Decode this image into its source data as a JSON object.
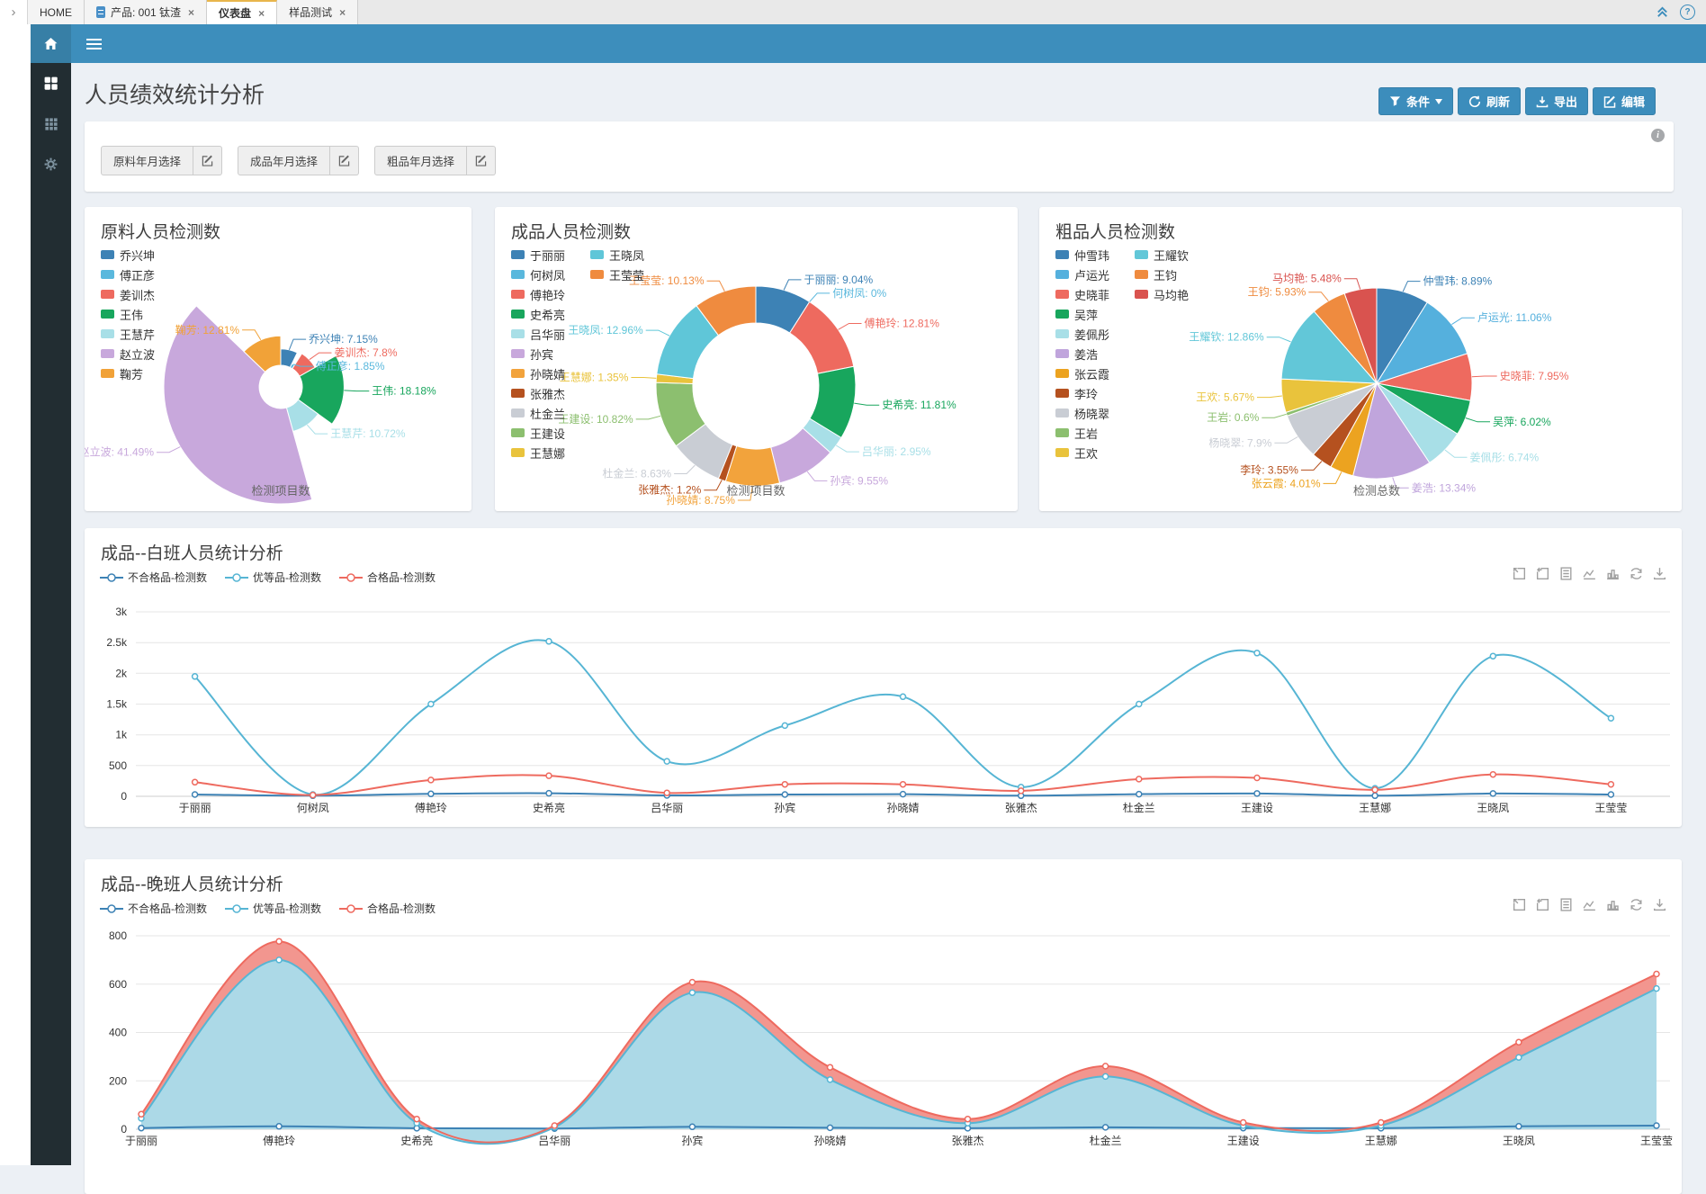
{
  "tab_bar": {
    "scroll_chevron": "›",
    "close_glyph": "×",
    "help_glyph": "?",
    "tabs": [
      {
        "label": "HOME",
        "active": false,
        "closable": false
      },
      {
        "label": "产品: 001 钛渣",
        "active": false,
        "closable": true,
        "icon": "database-icon"
      },
      {
        "label": "仪表盘",
        "active": true,
        "closable": true
      },
      {
        "label": "样品测试",
        "active": false,
        "closable": true
      }
    ]
  },
  "app_bar": {
    "colors": {
      "bar": "#3d8ebc",
      "home_button": "#377fa6"
    }
  },
  "sidebar": {
    "items": [
      {
        "icon": "grid-large-icon"
      },
      {
        "icon": "grid-small-icon"
      },
      {
        "icon": "gear-icon"
      }
    ]
  },
  "page": {
    "title": "人员绩效统计分析",
    "accent_color": "#3c8dbc",
    "info_icon": "i",
    "actions": [
      {
        "label": "条件",
        "icon": "funnel-icon",
        "caret": true
      },
      {
        "label": "刷新",
        "icon": "refresh-icon"
      },
      {
        "label": "导出",
        "icon": "download-icon"
      },
      {
        "label": "编辑",
        "icon": "edit-icon"
      }
    ]
  },
  "filter_bar": {
    "groups": [
      {
        "label": "原料年月选择",
        "icon": "edit-icon"
      },
      {
        "label": "成品年月选择",
        "icon": "edit-icon"
      },
      {
        "label": "粗品年月选择",
        "icon": "edit-icon"
      }
    ]
  },
  "toolbox_icons": [
    "zoom",
    "zoom-revert",
    "data-view",
    "line-type",
    "bar-type",
    "restore",
    "save-image"
  ],
  "chart_data": [
    {
      "type": "pie",
      "variant": "rose",
      "title": "原料人员检测数",
      "caption": "检测项目数",
      "label_format": "{name}: {value}%",
      "legend_columns": 1,
      "items": [
        {
          "name": "乔兴坤",
          "value": 7.15,
          "color": "#3d82b5"
        },
        {
          "name": "傅正彦",
          "value": 1.85,
          "color": "#5ab8dd"
        },
        {
          "name": "姜训杰",
          "value": 7.8,
          "color": "#ee6a5f"
        },
        {
          "name": "王伟",
          "value": 18.18,
          "color": "#18a65d"
        },
        {
          "name": "王慧芹",
          "value": 10.72,
          "color": "#a8dfe7"
        },
        {
          "name": "赵立波",
          "value": 41.49,
          "color": "#c8a8dc"
        },
        {
          "name": "鞠芳",
          "value": 12.81,
          "color": "#f1a238"
        }
      ],
      "legend": [
        "乔兴坤",
        "傅正彦",
        "姜训杰",
        "王伟",
        "王慧芹",
        "赵立波",
        "鞠芳"
      ]
    },
    {
      "type": "pie",
      "variant": "donut",
      "title": "成品人员检测数",
      "caption": "检测项目数",
      "label_format": "{name}: {value}%",
      "legend_columns": 2,
      "items": [
        {
          "name": "于丽丽",
          "value": 9.04,
          "color": "#3d82b5"
        },
        {
          "name": "何树凤",
          "value": 0,
          "color": "#5ab8dd"
        },
        {
          "name": "傅艳玲",
          "value": 12.81,
          "color": "#ee6a5f"
        },
        {
          "name": "史希亮",
          "value": 11.81,
          "color": "#18a65d"
        },
        {
          "name": "吕华丽",
          "value": 2.95,
          "color": "#a8dfe7"
        },
        {
          "name": "孙宾",
          "value": 9.55,
          "color": "#c8a8dc"
        },
        {
          "name": "孙晓婧",
          "value": 8.75,
          "color": "#f2a33c"
        },
        {
          "name": "张雅杰",
          "value": 1.2,
          "color": "#b5511f"
        },
        {
          "name": "杜金兰",
          "value": 8.63,
          "color": "#c9cdd4"
        },
        {
          "name": "王建设",
          "value": 10.82,
          "color": "#8cbf6f"
        },
        {
          "name": "王慧娜",
          "value": 1.35,
          "color": "#e9c33c"
        },
        {
          "name": "王晓凤",
          "value": 12.96,
          "color": "#5fc6d8"
        },
        {
          "name": "王莹莹",
          "value": 10.13,
          "color": "#ef8b3f"
        }
      ],
      "legend": [
        "于丽丽",
        "何树凤",
        "傅艳玲",
        "史希亮",
        "吕华丽",
        "孙宾",
        "孙晓婧",
        "张雅杰",
        "杜金兰",
        "王建设",
        "王慧娜",
        "王晓凤",
        "王莹莹"
      ]
    },
    {
      "type": "pie",
      "variant": "plain",
      "title": "粗品人员检测数",
      "caption": "检测总数",
      "label_format": "{name}: {value}%",
      "legend_columns": 2,
      "items": [
        {
          "name": "仲雪玮",
          "value": 8.89,
          "color": "#3d82b5"
        },
        {
          "name": "卢运光",
          "value": 11.06,
          "color": "#55b0dd"
        },
        {
          "name": "史晓菲",
          "value": 7.95,
          "color": "#ee6a5f"
        },
        {
          "name": "吴萍",
          "value": 6.02,
          "color": "#18a65d"
        },
        {
          "name": "姜佩彤",
          "value": 6.74,
          "color": "#a8dfe7"
        },
        {
          "name": "姜浩",
          "value": 13.34,
          "color": "#c0a5dc"
        },
        {
          "name": "张云霞",
          "value": 4.01,
          "color": "#eca320"
        },
        {
          "name": "李玲",
          "value": 3.55,
          "color": "#b5511f"
        },
        {
          "name": "杨晓翠",
          "value": 7.9,
          "color": "#c9cdd4"
        },
        {
          "name": "王岩",
          "value": 0.6,
          "color": "#8cbf6f"
        },
        {
          "name": "王欢",
          "value": 5.67,
          "color": "#e9c33c"
        },
        {
          "name": "王耀钦",
          "value": 12.86,
          "color": "#62c7d8"
        },
        {
          "name": "王钧",
          "value": 5.93,
          "color": "#ef8b3f"
        },
        {
          "name": "马均艳",
          "value": 5.48,
          "color": "#d9534f"
        }
      ],
      "legend": [
        "仲雪玮",
        "卢运光",
        "史晓菲",
        "吴萍",
        "姜佩彤",
        "姜浩",
        "张云霞",
        "李玲",
        "杨晓翠",
        "王岩",
        "王欢",
        "王耀钦",
        "王钧",
        "马均艳"
      ]
    },
    {
      "type": "line",
      "title": "成品--白班人员统计分析",
      "categories": [
        "于丽丽",
        "何树凤",
        "傅艳玲",
        "史希亮",
        "吕华丽",
        "孙宾",
        "孙晓婧",
        "张雅杰",
        "杜金兰",
        "王建设",
        "王慧娜",
        "王晓凤",
        "王莹莹"
      ],
      "ylim": [
        0,
        3000
      ],
      "yticks": [
        "0",
        "500",
        "1k",
        "1.5k",
        "2k",
        "2.5k",
        "3k"
      ],
      "grid": true,
      "legend_position": "top-left",
      "series": [
        {
          "name": "不合格品-检测数",
          "color": "#3d82b5",
          "values": [
            30,
            10,
            40,
            50,
            15,
            30,
            35,
            10,
            35,
            45,
            10,
            45,
            30
          ]
        },
        {
          "name": "优等品-检测数",
          "color": "#56b5d4",
          "values": [
            1950,
            30,
            1500,
            2520,
            570,
            1150,
            1620,
            150,
            1500,
            2330,
            130,
            2280,
            1270
          ]
        },
        {
          "name": "合格品-检测数",
          "color": "#ee6a5f",
          "values": [
            230,
            20,
            265,
            335,
            55,
            195,
            195,
            90,
            280,
            300,
            105,
            355,
            195
          ]
        }
      ]
    },
    {
      "type": "area",
      "title": "成品--晚班人员统计分析",
      "categories": [
        "于丽丽",
        "傅艳玲",
        "史希亮",
        "吕华丽",
        "孙宾",
        "孙晓婧",
        "张雅杰",
        "杜金兰",
        "王建设",
        "王慧娜",
        "王晓凤",
        "王莹莹"
      ],
      "ylim": [
        0,
        800
      ],
      "yticks": [
        "0",
        "200",
        "400",
        "600",
        "800"
      ],
      "grid": true,
      "legend_position": "top-left",
      "series": [
        {
          "name": "不合格品-检测数",
          "color": "#3d82b5",
          "values": [
            5,
            12,
            4,
            3,
            10,
            6,
            4,
            8,
            5,
            4,
            12,
            15
          ]
        },
        {
          "name": "优等品-检测数",
          "color": "#56b5d4",
          "fill": "#a8dcec",
          "values": [
            45,
            700,
            25,
            8,
            565,
            205,
            25,
            218,
            15,
            15,
            297,
            582
          ]
        },
        {
          "name": "合格品-检测数",
          "color": "#ee6a5f",
          "fill": "#f19089",
          "values": [
            62,
            777,
            42,
            15,
            608,
            256,
            42,
            261,
            28,
            28,
            360,
            642
          ]
        }
      ]
    }
  ]
}
